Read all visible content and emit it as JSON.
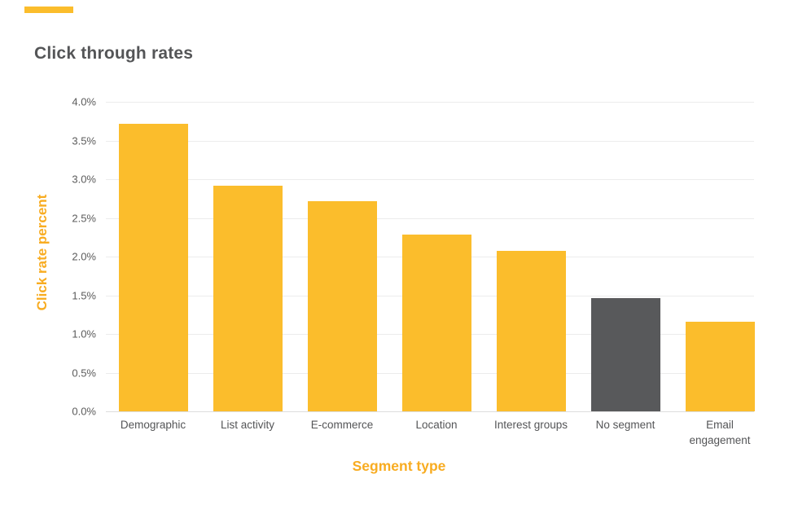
{
  "colors": {
    "bar_default": "#FBBD2C",
    "bar_highlight": "#58595B",
    "title": "#545557",
    "axis_title": "#F8AC21",
    "tick_label": "#5B5B5B",
    "x_tick_label": "#545557",
    "gridline": "#ECECEC",
    "baseline": "#DDDDDD",
    "accent_bar": "#FBBD2C",
    "background": "#FFFFFF"
  },
  "chart_data": {
    "type": "bar",
    "title": "Click through rates",
    "xlabel": "Segment type",
    "ylabel": "Click rate percent",
    "categories": [
      "Demographic",
      "List activity",
      "E-commerce",
      "Location",
      "Interest groups",
      "No segment",
      "Email engagement"
    ],
    "values": [
      3.72,
      2.92,
      2.72,
      2.28,
      2.07,
      1.46,
      1.16
    ],
    "unit": "%",
    "ylim": [
      0,
      4.0
    ],
    "ytick_step": 0.5,
    "yticks": [
      "4.0%",
      "3.5%",
      "3.0%",
      "2.5%",
      "2.0%",
      "1.5%",
      "1.0%",
      "0.5%",
      "0.0%"
    ],
    "grid": true,
    "legend": "none",
    "highlight_category": "No segment",
    "bar_colors": [
      "#FBBD2C",
      "#FBBD2C",
      "#FBBD2C",
      "#FBBD2C",
      "#FBBD2C",
      "#58595B",
      "#FBBD2C"
    ]
  }
}
